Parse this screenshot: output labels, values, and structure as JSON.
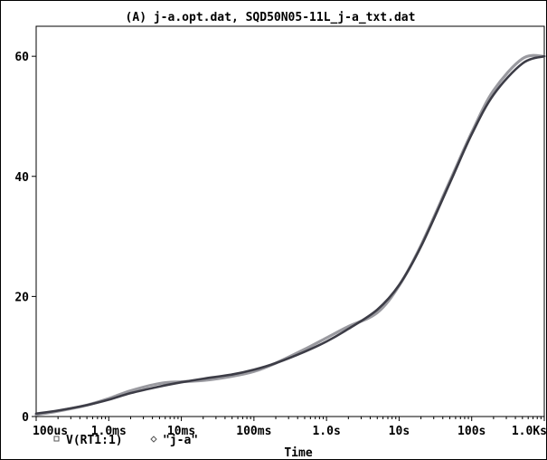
{
  "chart_data": {
    "type": "line",
    "title": "(A) j-a.opt.dat, SQD50N05-11L_j-a_txt.dat",
    "xlabel": "Time",
    "ylabel": "",
    "x_scale": "log",
    "xlim": [
      0.0001,
      1000
    ],
    "ylim": [
      0,
      65
    ],
    "x_ticks": [
      {
        "value": 0.0001,
        "label": "100us"
      },
      {
        "value": 0.001,
        "label": "1.0ms"
      },
      {
        "value": 0.01,
        "label": "10ms"
      },
      {
        "value": 0.1,
        "label": "100ms"
      },
      {
        "value": 1,
        "label": "1.0s"
      },
      {
        "value": 10,
        "label": "10s"
      },
      {
        "value": 100,
        "label": "100s"
      },
      {
        "value": 1000,
        "label": "1.0Ks"
      }
    ],
    "y_ticks": [
      {
        "value": 0,
        "label": "0"
      },
      {
        "value": 20,
        "label": "20"
      },
      {
        "value": 40,
        "label": "40"
      },
      {
        "value": 60,
        "label": "60"
      }
    ],
    "grid": false,
    "legend_position": "bottom-left",
    "series": [
      {
        "name": "V(RT1:1)",
        "marker": "square",
        "color": "#3c3c46",
        "x": [
          0.0001,
          0.0002,
          0.0005,
          0.001,
          0.002,
          0.005,
          0.01,
          0.02,
          0.05,
          0.1,
          0.2,
          0.5,
          1,
          2,
          5,
          10,
          20,
          50,
          100,
          200,
          500,
          1000
        ],
        "y": [
          0.5,
          1.0,
          1.9,
          2.8,
          3.9,
          5.0,
          5.7,
          6.3,
          7.0,
          7.8,
          8.9,
          10.8,
          12.5,
          14.6,
          17.8,
          21.9,
          28.3,
          38.9,
          47.0,
          53.6,
          58.8,
          60.0
        ]
      },
      {
        "name": "\"j-a\"",
        "marker": "diamond",
        "color": "#9a9aa0",
        "x": [
          0.0001,
          0.0002,
          0.0005,
          0.001,
          0.002,
          0.005,
          0.01,
          0.02,
          0.05,
          0.1,
          0.2,
          0.5,
          1,
          2,
          5,
          10,
          20,
          50,
          100,
          200,
          500,
          1000
        ],
        "y": [
          0.3,
          0.9,
          1.9,
          3.0,
          4.3,
          5.5,
          5.8,
          6.0,
          6.7,
          7.5,
          8.9,
          11.2,
          13.1,
          15.0,
          17.3,
          21.8,
          28.5,
          39.2,
          47.3,
          54.3,
          59.6,
          60.0
        ]
      }
    ]
  }
}
